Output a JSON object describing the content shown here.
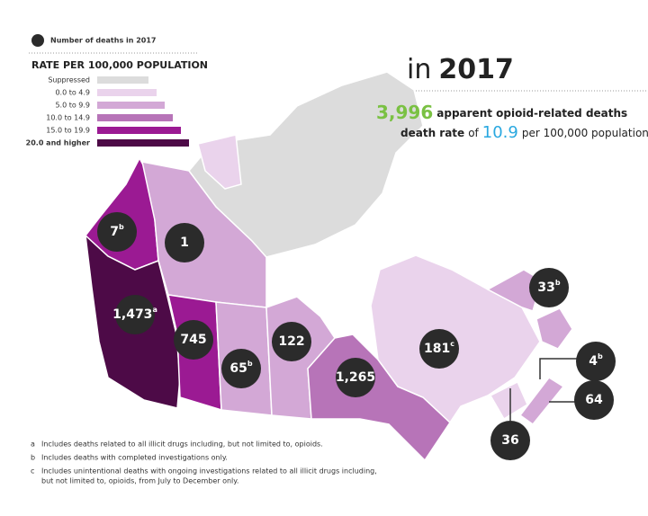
{
  "legend": {
    "circle_label": "Number of deaths in 2017",
    "rate_title": "RATE PER 100,000 POPULATION",
    "classes": [
      {
        "label": "Suppressed",
        "color": "#dcdcdc"
      },
      {
        "label": "0.0 to 4.9",
        "color": "#ead3ec"
      },
      {
        "label": "5.0 to 9.9",
        "color": "#d3a8d6"
      },
      {
        "label": "10.0 to 14.9",
        "color": "#b774b8"
      },
      {
        "label": "15.0 to 19.9",
        "color": "#9b1a93"
      },
      {
        "label": "20.0 and higher",
        "color": "#4d0a47"
      }
    ]
  },
  "summary": {
    "year_prefix": "in",
    "year": "2017",
    "deaths": "3,996",
    "deaths_text": "apparent opioid-related deaths",
    "rate_prefix": "death rate",
    "rate_of": "of",
    "rate": "10.9",
    "rate_suffix": "per 100,000 population"
  },
  "regions": [
    {
      "color": "#9b1a93"
    },
    {
      "color": "#4d0a47"
    },
    {
      "color": "#d3a8d6"
    },
    {
      "color": "#dcdcdc"
    },
    {
      "color": "#9b1a93"
    },
    {
      "color": "#d3a8d6"
    },
    {
      "color": "#d3a8d6"
    },
    {
      "color": "#b774b8"
    },
    {
      "color": "#ead3ec"
    },
    {
      "color": "#d3a8d6"
    },
    {
      "color": "#d3a8d6"
    },
    {
      "color": "#ead3ec"
    },
    {
      "color": "#d3a8d6"
    },
    {
      "color": "#ead3ec"
    }
  ],
  "circles": [
    {
      "label": "7",
      "note": "b"
    },
    {
      "label": "1"
    },
    {
      "label": "1,473",
      "note": "a"
    },
    {
      "label": "745"
    },
    {
      "label": "65",
      "note": "b"
    },
    {
      "label": "122"
    },
    {
      "label": "1,265"
    },
    {
      "label": "181",
      "note": "c"
    },
    {
      "label": "33",
      "note": "b"
    },
    {
      "label": "4",
      "note": "b"
    },
    {
      "label": "64"
    },
    {
      "label": "36"
    }
  ],
  "footnotes": [
    {
      "key": "a",
      "text": "Includes deaths related to all illicit drugs including, but not limited to, opioids."
    },
    {
      "key": "b",
      "text": "Includes deaths with completed investigations only."
    },
    {
      "key": "c",
      "text": "Includes unintentional deaths with ongoing investigations related to all illicit drugs including,",
      "text2": "but not limited to, opioids, from July to December only."
    }
  ]
}
